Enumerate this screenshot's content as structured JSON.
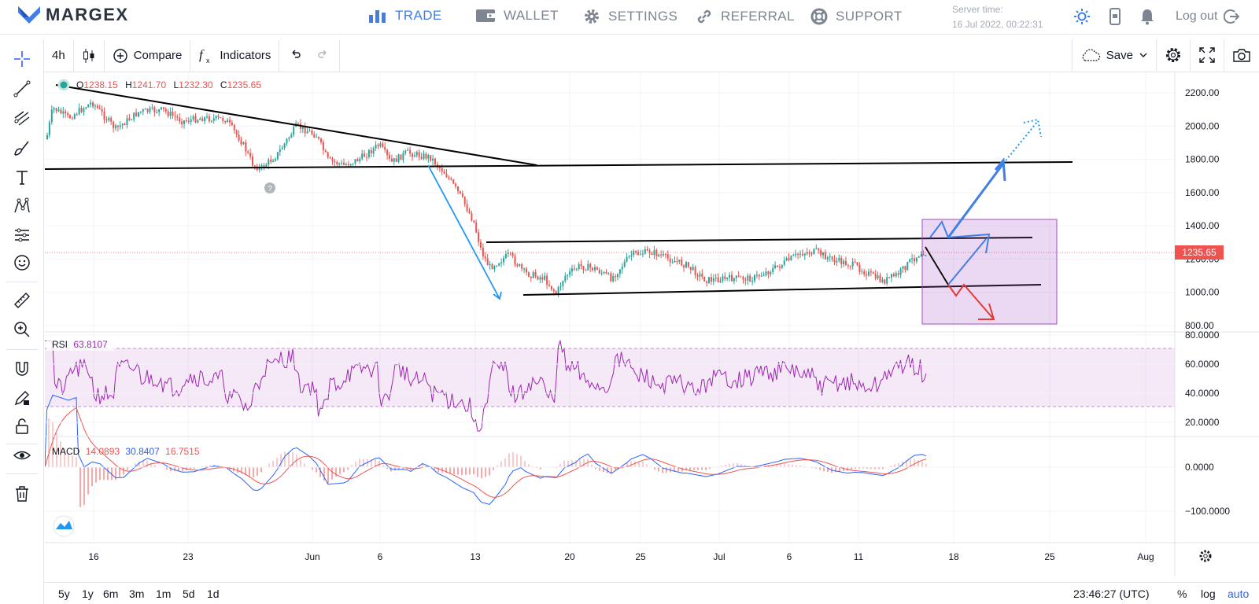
{
  "brand": {
    "name": "MARGEX",
    "color": "#3f7fe6"
  },
  "nav": {
    "trade": "TRADE",
    "wallet": "WALLET",
    "settings": "SETTINGS",
    "referral": "REFERRAL",
    "support": "SUPPORT"
  },
  "server": {
    "label": "Server time:",
    "value": "16 Jul 2022, 00:22:31"
  },
  "user": {
    "logout": "Log out"
  },
  "toolbar": {
    "interval": "4h",
    "compare": "Compare",
    "indicators": "Indicators",
    "save": "Save"
  },
  "left_tools": [
    "crosshair-icon",
    "trend-line-icon",
    "pitchfork-icon",
    "brush-icon",
    "text-icon",
    "pattern-icon",
    "prediction-icon",
    "emoji-icon",
    "ruler-icon",
    "zoom-icon",
    "magnet-icon",
    "lock-drawings-icon",
    "lock-icon",
    "eye-icon",
    "trash-icon"
  ],
  "ohlc": {
    "o_label": "O",
    "o": "1238.15",
    "h_label": "H",
    "h": "1241.70",
    "l_label": "L",
    "l": "1232.30",
    "c_label": "C",
    "c": "1235.65"
  },
  "price_axis": [
    "2200.00",
    "2000.00",
    "1800.00",
    "1600.00",
    "1400.00",
    "1200.00",
    "1000.00",
    "800.00"
  ],
  "last_price": "1235.65",
  "rsi": {
    "label": "RSI",
    "value": "63.8107",
    "axis": [
      "80.0000",
      "60.0000",
      "40.0000",
      "20.0000"
    ],
    "color": "#9c27b0"
  },
  "macd": {
    "label": "MACD",
    "v1": "14.0893",
    "v2": "30.8407",
    "v3": "16.7515",
    "axis": [
      "0.0000",
      "−100.0000"
    ]
  },
  "time_axis": [
    "16",
    "23",
    "Jun",
    "6",
    "13",
    "20",
    "25",
    "Jul",
    "6",
    "11",
    "18",
    "25",
    "Aug"
  ],
  "chart_data": {
    "type": "candlestick",
    "symbol_interval": "4h",
    "y_range": [
      800,
      2200
    ],
    "last": {
      "open": 1238.15,
      "high": 1241.7,
      "low": 1232.3,
      "close": 1235.65
    },
    "rsi_last": 63.8107,
    "macd_last": [
      14.0893,
      30.8407,
      16.7515
    ],
    "up_color": "#26a69a",
    "down_color": "#ef5350"
  },
  "bottombar": {
    "ranges": [
      "5y",
      "1y",
      "6m",
      "3m",
      "1m",
      "5d",
      "1d"
    ],
    "clock": "23:46:27 (UTC)",
    "percent": "%",
    "log": "log",
    "auto": "auto"
  }
}
